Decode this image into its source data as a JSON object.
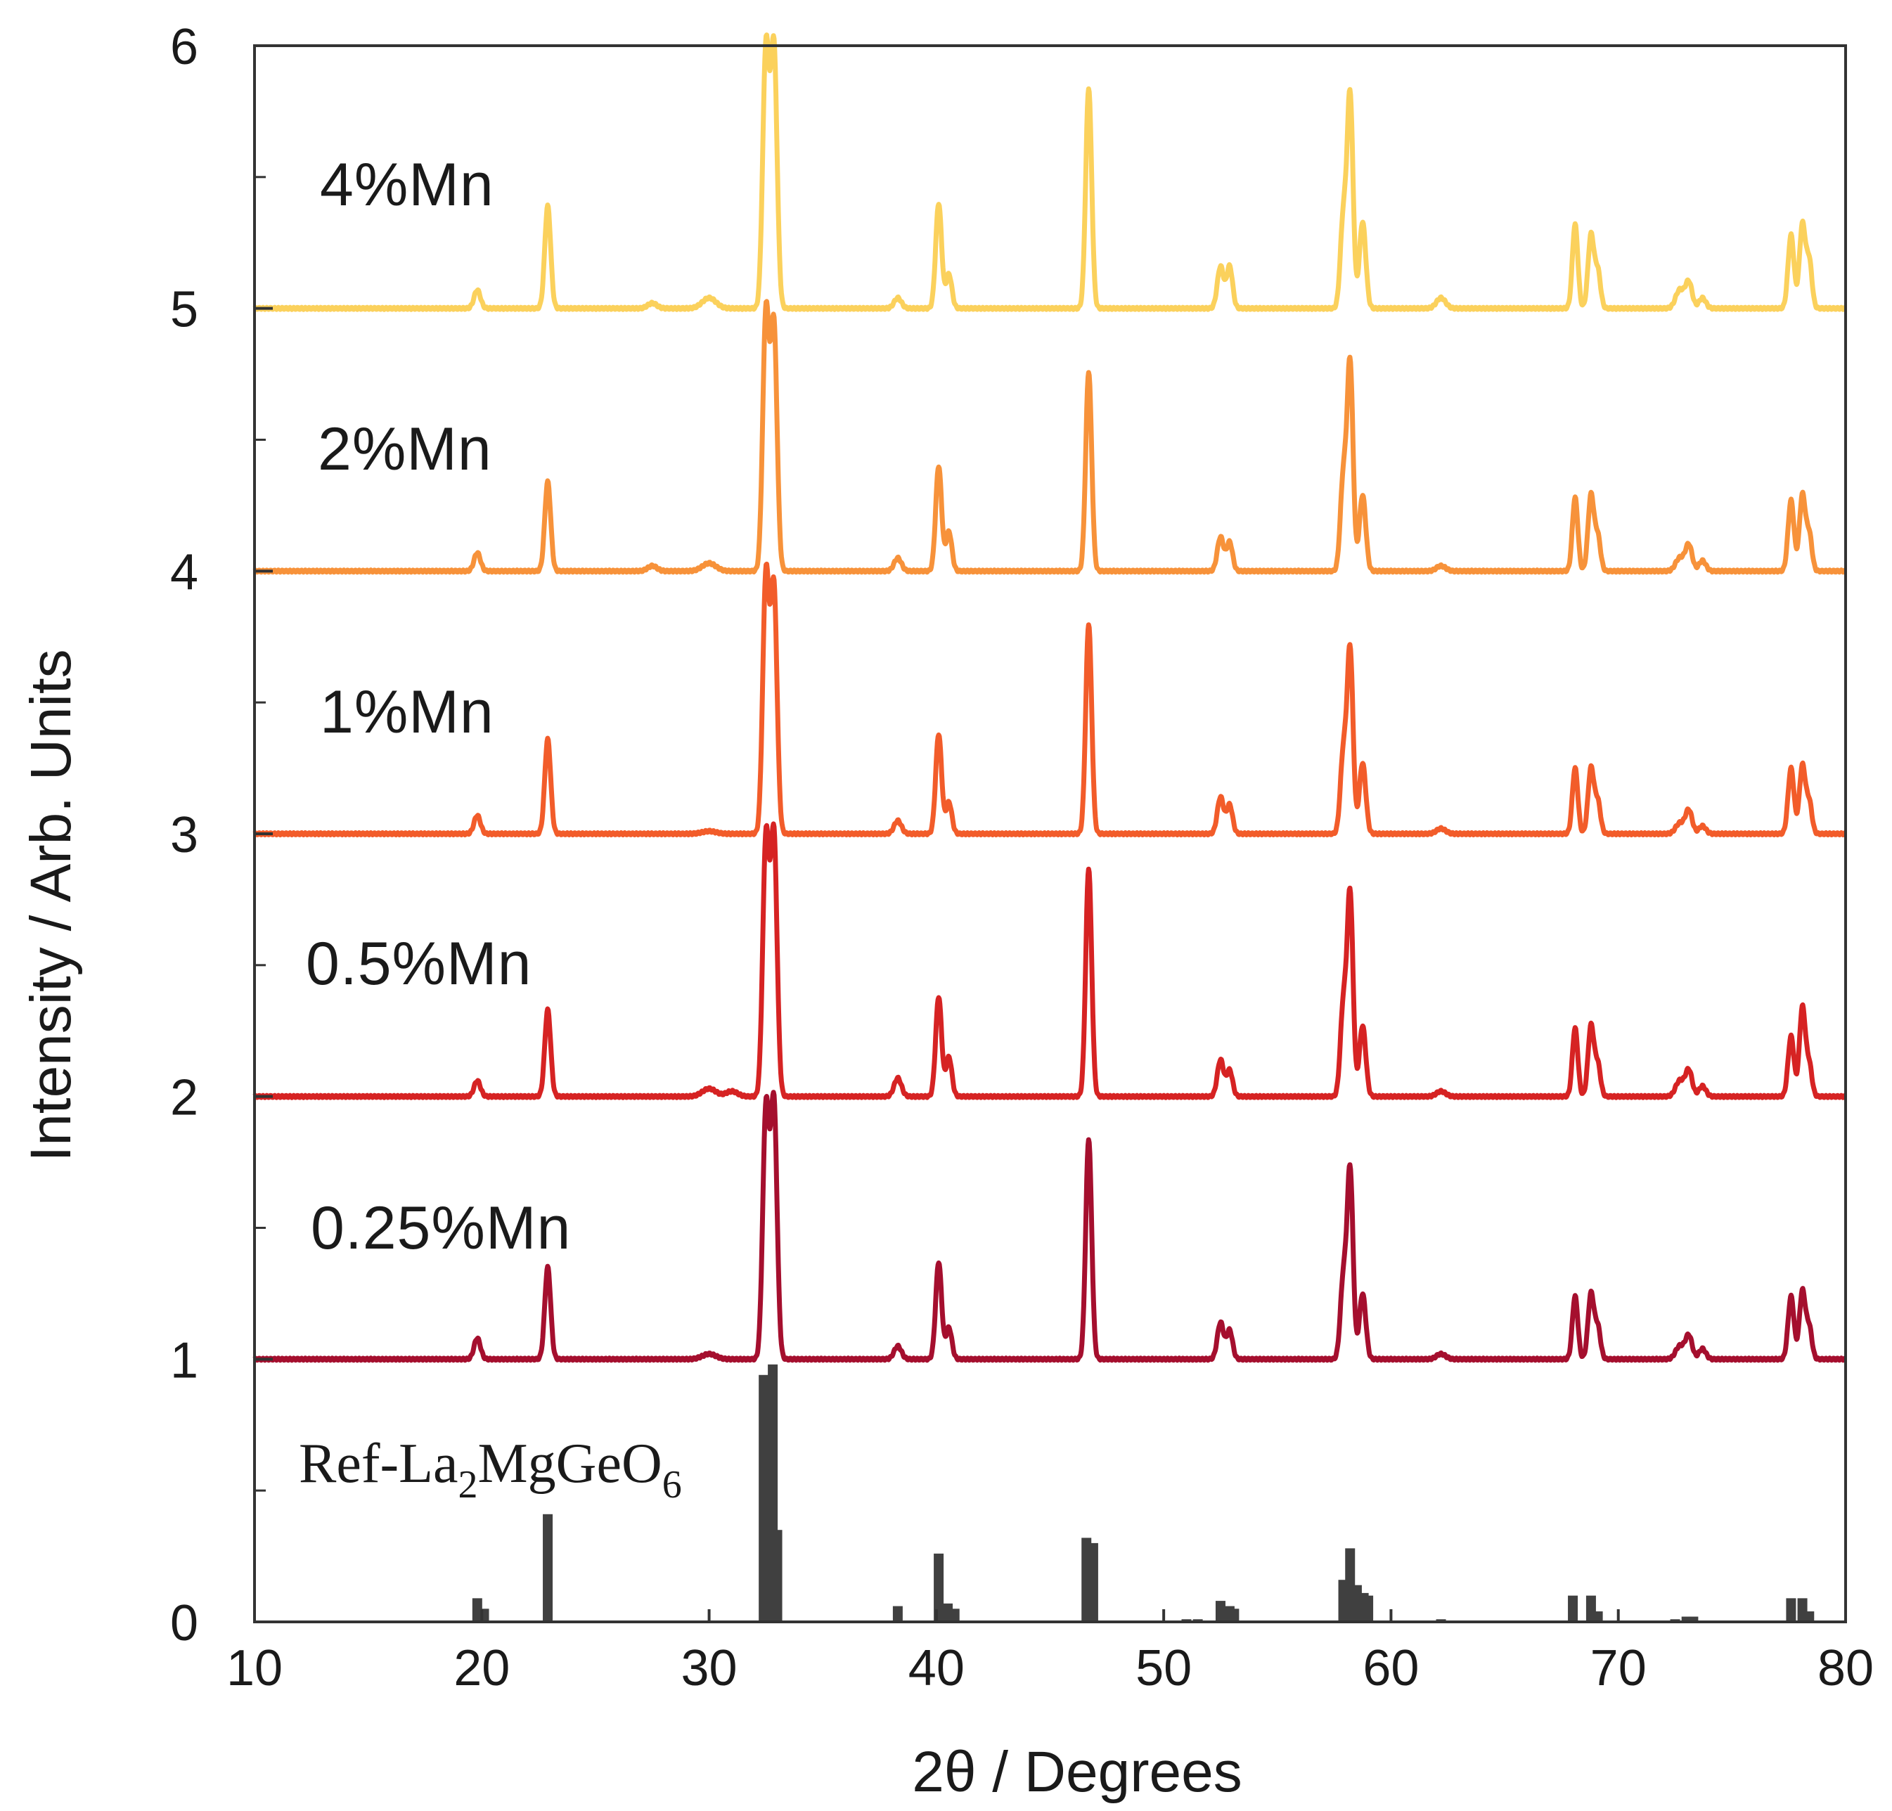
{
  "chart_data": {
    "type": "line",
    "title": "",
    "xlabel": "2θ / Degrees",
    "ylabel": "Intensity / Arb. Units",
    "xlim": [
      10,
      80
    ],
    "ylim": [
      0,
      6
    ],
    "xticks": [
      10,
      20,
      30,
      40,
      50,
      60,
      70,
      80
    ],
    "xtick_labels": [
      "10",
      "20",
      "30",
      "40",
      "50",
      "60",
      "70",
      "80"
    ],
    "yticks": [
      0,
      1,
      2,
      3,
      4,
      5,
      6
    ],
    "ytick_labels": [
      "0",
      "1",
      "2",
      "3",
      "4",
      "5",
      "6"
    ],
    "yminor_ticks": [
      0.5,
      1.5,
      2.5,
      3.5,
      4.5,
      5.5
    ],
    "grid": false,
    "legend": "inline labels",
    "series": [
      {
        "name": "Ref-La2MgGeO6",
        "label_main": "Ref-La",
        "label_sub1": "2",
        "label_mid": "MgGeO",
        "label_sub2": "6",
        "offset": 0,
        "color": "#404040",
        "kind": "stick",
        "peaks": [
          {
            "x": 19.8,
            "h": 0.09
          },
          {
            "x": 20.1,
            "h": 0.05
          },
          {
            "x": 22.9,
            "h": 0.41
          },
          {
            "x": 32.4,
            "h": 0.94
          },
          {
            "x": 32.8,
            "h": 0.98
          },
          {
            "x": 33.0,
            "h": 0.35
          },
          {
            "x": 38.3,
            "h": 0.06
          },
          {
            "x": 40.1,
            "h": 0.26
          },
          {
            "x": 40.5,
            "h": 0.07
          },
          {
            "x": 40.8,
            "h": 0.05
          },
          {
            "x": 46.6,
            "h": 0.32
          },
          {
            "x": 46.9,
            "h": 0.3
          },
          {
            "x": 51.0,
            "h": 0.01
          },
          {
            "x": 51.5,
            "h": 0.01
          },
          {
            "x": 52.5,
            "h": 0.08
          },
          {
            "x": 52.9,
            "h": 0.06
          },
          {
            "x": 53.1,
            "h": 0.05
          },
          {
            "x": 57.9,
            "h": 0.16
          },
          {
            "x": 58.2,
            "h": 0.28
          },
          {
            "x": 58.5,
            "h": 0.14
          },
          {
            "x": 58.8,
            "h": 0.11
          },
          {
            "x": 59.0,
            "h": 0.1
          },
          {
            "x": 62.2,
            "h": 0.01
          },
          {
            "x": 68.0,
            "h": 0.1
          },
          {
            "x": 68.8,
            "h": 0.1
          },
          {
            "x": 69.1,
            "h": 0.04
          },
          {
            "x": 72.5,
            "h": 0.01
          },
          {
            "x": 73.0,
            "h": 0.02
          },
          {
            "x": 73.3,
            "h": 0.02
          },
          {
            "x": 77.6,
            "h": 0.09
          },
          {
            "x": 78.1,
            "h": 0.09
          },
          {
            "x": 78.4,
            "h": 0.04
          }
        ]
      },
      {
        "name": "0.25%Mn",
        "offset": 1,
        "color": "#a50f2e",
        "kind": "pattern",
        "peaks": [
          {
            "x": 19.8,
            "h": 0.08,
            "w": 0.14
          },
          {
            "x": 22.9,
            "h": 0.35,
            "w": 0.13
          },
          {
            "x": 30.0,
            "h": 0.02,
            "w": 0.3
          },
          {
            "x": 32.5,
            "h": 0.95,
            "w": 0.14
          },
          {
            "x": 32.85,
            "h": 0.97,
            "w": 0.14
          },
          {
            "x": 38.3,
            "h": 0.05,
            "w": 0.16
          },
          {
            "x": 40.1,
            "h": 0.37,
            "w": 0.13
          },
          {
            "x": 40.55,
            "h": 0.12,
            "w": 0.13
          },
          {
            "x": 46.7,
            "h": 0.84,
            "w": 0.13
          },
          {
            "x": 52.5,
            "h": 0.14,
            "w": 0.14
          },
          {
            "x": 52.9,
            "h": 0.11,
            "w": 0.13
          },
          {
            "x": 57.9,
            "h": 0.3,
            "w": 0.13
          },
          {
            "x": 58.2,
            "h": 0.72,
            "w": 0.13
          },
          {
            "x": 58.75,
            "h": 0.25,
            "w": 0.14
          },
          {
            "x": 62.2,
            "h": 0.02,
            "w": 0.2
          },
          {
            "x": 68.1,
            "h": 0.24,
            "w": 0.12
          },
          {
            "x": 68.8,
            "h": 0.25,
            "w": 0.13
          },
          {
            "x": 69.1,
            "h": 0.12,
            "w": 0.12
          },
          {
            "x": 72.7,
            "h": 0.05,
            "w": 0.18
          },
          {
            "x": 73.1,
            "h": 0.09,
            "w": 0.15
          },
          {
            "x": 73.7,
            "h": 0.04,
            "w": 0.15
          },
          {
            "x": 77.6,
            "h": 0.24,
            "w": 0.13
          },
          {
            "x": 78.1,
            "h": 0.26,
            "w": 0.13
          },
          {
            "x": 78.4,
            "h": 0.12,
            "w": 0.12
          }
        ]
      },
      {
        "name": "0.5%Mn",
        "offset": 2,
        "color": "#d62323",
        "kind": "pattern",
        "peaks": [
          {
            "x": 19.8,
            "h": 0.06,
            "w": 0.14
          },
          {
            "x": 22.9,
            "h": 0.33,
            "w": 0.13
          },
          {
            "x": 30.0,
            "h": 0.03,
            "w": 0.3
          },
          {
            "x": 31.0,
            "h": 0.02,
            "w": 0.25
          },
          {
            "x": 32.5,
            "h": 0.98,
            "w": 0.14
          },
          {
            "x": 32.85,
            "h": 0.99,
            "w": 0.14
          },
          {
            "x": 38.3,
            "h": 0.07,
            "w": 0.16
          },
          {
            "x": 40.1,
            "h": 0.38,
            "w": 0.13
          },
          {
            "x": 40.55,
            "h": 0.15,
            "w": 0.13
          },
          {
            "x": 46.7,
            "h": 0.87,
            "w": 0.13
          },
          {
            "x": 52.5,
            "h": 0.14,
            "w": 0.14
          },
          {
            "x": 52.9,
            "h": 0.1,
            "w": 0.13
          },
          {
            "x": 57.9,
            "h": 0.34,
            "w": 0.13
          },
          {
            "x": 58.2,
            "h": 0.77,
            "w": 0.13
          },
          {
            "x": 58.75,
            "h": 0.27,
            "w": 0.14
          },
          {
            "x": 62.2,
            "h": 0.02,
            "w": 0.2
          },
          {
            "x": 68.1,
            "h": 0.26,
            "w": 0.12
          },
          {
            "x": 68.8,
            "h": 0.27,
            "w": 0.13
          },
          {
            "x": 69.1,
            "h": 0.12,
            "w": 0.12
          },
          {
            "x": 72.7,
            "h": 0.06,
            "w": 0.18
          },
          {
            "x": 73.1,
            "h": 0.1,
            "w": 0.15
          },
          {
            "x": 73.7,
            "h": 0.04,
            "w": 0.15
          },
          {
            "x": 77.6,
            "h": 0.23,
            "w": 0.13
          },
          {
            "x": 78.1,
            "h": 0.34,
            "w": 0.13
          },
          {
            "x": 78.4,
            "h": 0.12,
            "w": 0.12
          }
        ]
      },
      {
        "name": "1%Mn",
        "offset": 3,
        "color": "#f25c2a",
        "kind": "pattern",
        "peaks": [
          {
            "x": 19.8,
            "h": 0.07,
            "w": 0.14
          },
          {
            "x": 22.9,
            "h": 0.36,
            "w": 0.13
          },
          {
            "x": 30.0,
            "h": 0.01,
            "w": 0.3
          },
          {
            "x": 32.5,
            "h": 0.98,
            "w": 0.14
          },
          {
            "x": 32.85,
            "h": 0.93,
            "w": 0.14
          },
          {
            "x": 38.3,
            "h": 0.05,
            "w": 0.16
          },
          {
            "x": 40.1,
            "h": 0.38,
            "w": 0.13
          },
          {
            "x": 40.55,
            "h": 0.12,
            "w": 0.13
          },
          {
            "x": 46.7,
            "h": 0.8,
            "w": 0.13
          },
          {
            "x": 52.5,
            "h": 0.14,
            "w": 0.14
          },
          {
            "x": 52.9,
            "h": 0.11,
            "w": 0.13
          },
          {
            "x": 57.9,
            "h": 0.3,
            "w": 0.13
          },
          {
            "x": 58.2,
            "h": 0.7,
            "w": 0.13
          },
          {
            "x": 58.75,
            "h": 0.27,
            "w": 0.14
          },
          {
            "x": 62.2,
            "h": 0.02,
            "w": 0.2
          },
          {
            "x": 68.1,
            "h": 0.25,
            "w": 0.12
          },
          {
            "x": 68.8,
            "h": 0.25,
            "w": 0.13
          },
          {
            "x": 69.1,
            "h": 0.12,
            "w": 0.12
          },
          {
            "x": 72.7,
            "h": 0.04,
            "w": 0.18
          },
          {
            "x": 73.1,
            "h": 0.09,
            "w": 0.15
          },
          {
            "x": 73.7,
            "h": 0.03,
            "w": 0.15
          },
          {
            "x": 77.6,
            "h": 0.25,
            "w": 0.13
          },
          {
            "x": 78.1,
            "h": 0.26,
            "w": 0.13
          },
          {
            "x": 78.4,
            "h": 0.12,
            "w": 0.12
          }
        ]
      },
      {
        "name": "2%Mn",
        "offset": 4,
        "color": "#f7923a",
        "kind": "pattern",
        "peaks": [
          {
            "x": 19.8,
            "h": 0.07,
            "w": 0.14
          },
          {
            "x": 22.9,
            "h": 0.34,
            "w": 0.13
          },
          {
            "x": 27.5,
            "h": 0.02,
            "w": 0.2
          },
          {
            "x": 30.0,
            "h": 0.03,
            "w": 0.3
          },
          {
            "x": 32.5,
            "h": 0.98,
            "w": 0.14
          },
          {
            "x": 32.85,
            "h": 0.93,
            "w": 0.14
          },
          {
            "x": 38.3,
            "h": 0.05,
            "w": 0.16
          },
          {
            "x": 40.1,
            "h": 0.4,
            "w": 0.13
          },
          {
            "x": 40.55,
            "h": 0.15,
            "w": 0.13
          },
          {
            "x": 46.7,
            "h": 0.76,
            "w": 0.13
          },
          {
            "x": 52.5,
            "h": 0.13,
            "w": 0.14
          },
          {
            "x": 52.9,
            "h": 0.11,
            "w": 0.13
          },
          {
            "x": 57.9,
            "h": 0.35,
            "w": 0.13
          },
          {
            "x": 58.2,
            "h": 0.79,
            "w": 0.13
          },
          {
            "x": 58.75,
            "h": 0.29,
            "w": 0.14
          },
          {
            "x": 62.2,
            "h": 0.02,
            "w": 0.2
          },
          {
            "x": 68.1,
            "h": 0.28,
            "w": 0.12
          },
          {
            "x": 68.8,
            "h": 0.29,
            "w": 0.13
          },
          {
            "x": 69.1,
            "h": 0.13,
            "w": 0.12
          },
          {
            "x": 72.7,
            "h": 0.05,
            "w": 0.18
          },
          {
            "x": 73.1,
            "h": 0.1,
            "w": 0.15
          },
          {
            "x": 73.7,
            "h": 0.04,
            "w": 0.15
          },
          {
            "x": 77.6,
            "h": 0.27,
            "w": 0.13
          },
          {
            "x": 78.1,
            "h": 0.29,
            "w": 0.13
          },
          {
            "x": 78.4,
            "h": 0.14,
            "w": 0.12
          }
        ]
      },
      {
        "name": "4%Mn",
        "offset": 5,
        "color": "#fbd15c",
        "kind": "pattern",
        "peaks": [
          {
            "x": 19.8,
            "h": 0.07,
            "w": 0.14
          },
          {
            "x": 22.9,
            "h": 0.39,
            "w": 0.13
          },
          {
            "x": 27.5,
            "h": 0.02,
            "w": 0.2
          },
          {
            "x": 30.0,
            "h": 0.04,
            "w": 0.3
          },
          {
            "x": 32.5,
            "h": 0.99,
            "w": 0.14
          },
          {
            "x": 32.85,
            "h": 0.99,
            "w": 0.14
          },
          {
            "x": 38.3,
            "h": 0.04,
            "w": 0.16
          },
          {
            "x": 40.1,
            "h": 0.4,
            "w": 0.13
          },
          {
            "x": 40.55,
            "h": 0.13,
            "w": 0.13
          },
          {
            "x": 46.7,
            "h": 0.84,
            "w": 0.13
          },
          {
            "x": 52.5,
            "h": 0.16,
            "w": 0.14
          },
          {
            "x": 52.9,
            "h": 0.16,
            "w": 0.13
          },
          {
            "x": 57.9,
            "h": 0.34,
            "w": 0.13
          },
          {
            "x": 58.2,
            "h": 0.81,
            "w": 0.13
          },
          {
            "x": 58.75,
            "h": 0.33,
            "w": 0.14
          },
          {
            "x": 62.2,
            "h": 0.04,
            "w": 0.2
          },
          {
            "x": 68.1,
            "h": 0.32,
            "w": 0.12
          },
          {
            "x": 68.8,
            "h": 0.28,
            "w": 0.13
          },
          {
            "x": 69.1,
            "h": 0.14,
            "w": 0.12
          },
          {
            "x": 72.7,
            "h": 0.07,
            "w": 0.18
          },
          {
            "x": 73.1,
            "h": 0.1,
            "w": 0.15
          },
          {
            "x": 73.7,
            "h": 0.04,
            "w": 0.15
          },
          {
            "x": 77.6,
            "h": 0.28,
            "w": 0.13
          },
          {
            "x": 78.1,
            "h": 0.32,
            "w": 0.13
          },
          {
            "x": 78.4,
            "h": 0.18,
            "w": 0.12
          }
        ]
      }
    ]
  }
}
